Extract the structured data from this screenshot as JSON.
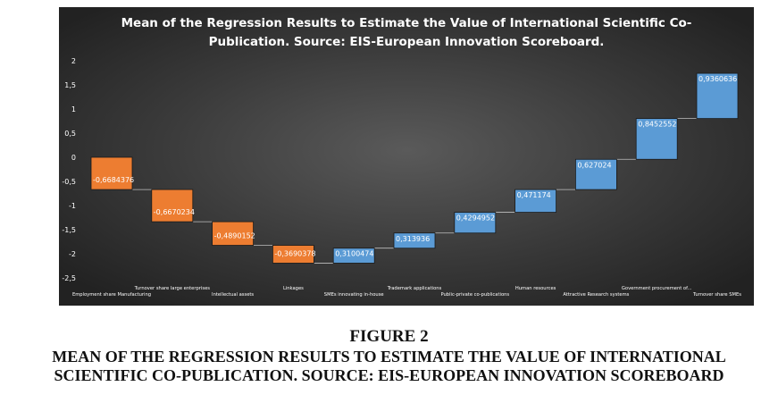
{
  "figure": {
    "label": "FIGURE 2",
    "caption": "MEAN OF THE REGRESSION RESULTS TO ESTIMATE THE VALUE OF INTERNATIONAL SCIENTIFIC CO-PUBLICATION. SOURCE: EIS-EUROPEAN INNOVATION SCOREBOARD"
  },
  "colors": {
    "background": "#2b2b2b",
    "negative": "#ed7d31",
    "positive": "#5b9bd5",
    "text": "#ffffff"
  },
  "chart_data": {
    "type": "bar",
    "subtype": "waterfall",
    "title": "Mean of the Regression Results to Estimate the Value of International Scientific Co-Publication. Source: EIS-European Innovation Scoreboard.",
    "ylim": [
      -2.5,
      2
    ],
    "yticks": [
      "2",
      "1,5",
      "1",
      "0,5",
      "0",
      "-0,5",
      "-1",
      "-1,5",
      "-2",
      "-2,5"
    ],
    "ytick_values": [
      2,
      1.5,
      1,
      0.5,
      0,
      -0.5,
      -1,
      -1.5,
      -2,
      -2.5
    ],
    "grid": false,
    "categories": [
      "Employment share Manufacturing",
      "Turnover share large enterprises",
      "Intellectual assets",
      "Linkages",
      "SMEs innovating in-house",
      "Trademark applications",
      "Public-private co-publications",
      "Human resources",
      "Attractive Research systems",
      "Government procurement of...",
      "Turnover share SMEs"
    ],
    "values": [
      -0.6684376,
      -0.6670234,
      -0.4890152,
      -0.3690378,
      0.3100474,
      0.313936,
      0.4294952,
      0.471174,
      0.627024,
      0.8452552,
      0.9360636
    ],
    "value_labels": [
      "-0,6684376",
      "-0,6670234",
      "-0,4890152",
      "-0,3690378",
      "0,3100474",
      "0,313936",
      "0,4294952",
      "0,471174",
      "0,627024",
      "0,8452552",
      "0,9360636"
    ]
  }
}
